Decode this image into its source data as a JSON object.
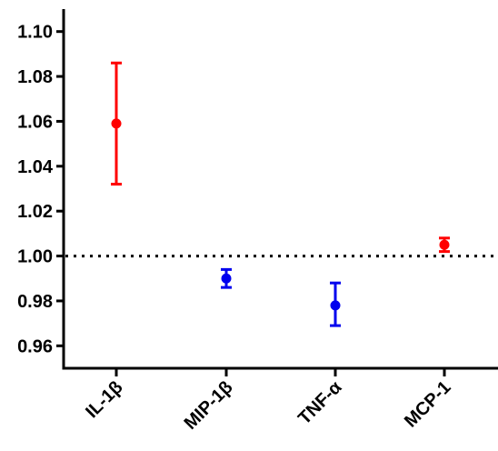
{
  "chart_data": {
    "type": "scatter",
    "title": "",
    "xlabel": "",
    "ylabel": "",
    "ylim": [
      0.95,
      1.11
    ],
    "yticks": [
      "0.96",
      "0.98",
      "1.00",
      "1.02",
      "1.04",
      "1.06",
      "1.08",
      "1.10"
    ],
    "reference_line": {
      "y": 1.0,
      "style": "dotted"
    },
    "grid": false,
    "legend": "none",
    "categories": [
      "IL-1β",
      "MIP-1β",
      "TNF-α",
      "MCP-1"
    ],
    "points": [
      {
        "category": "IL-1β",
        "value": 1.059,
        "lower": 1.032,
        "upper": 1.086,
        "color": "#ff0000"
      },
      {
        "category": "MIP-1β",
        "value": 0.99,
        "lower": 0.986,
        "upper": 0.994,
        "color": "#0000ee"
      },
      {
        "category": "TNF-α",
        "value": 0.978,
        "lower": 0.969,
        "upper": 0.988,
        "color": "#0000ee"
      },
      {
        "category": "MCP-1",
        "value": 1.005,
        "lower": 1.002,
        "upper": 1.008,
        "color": "#ff0000"
      }
    ]
  }
}
